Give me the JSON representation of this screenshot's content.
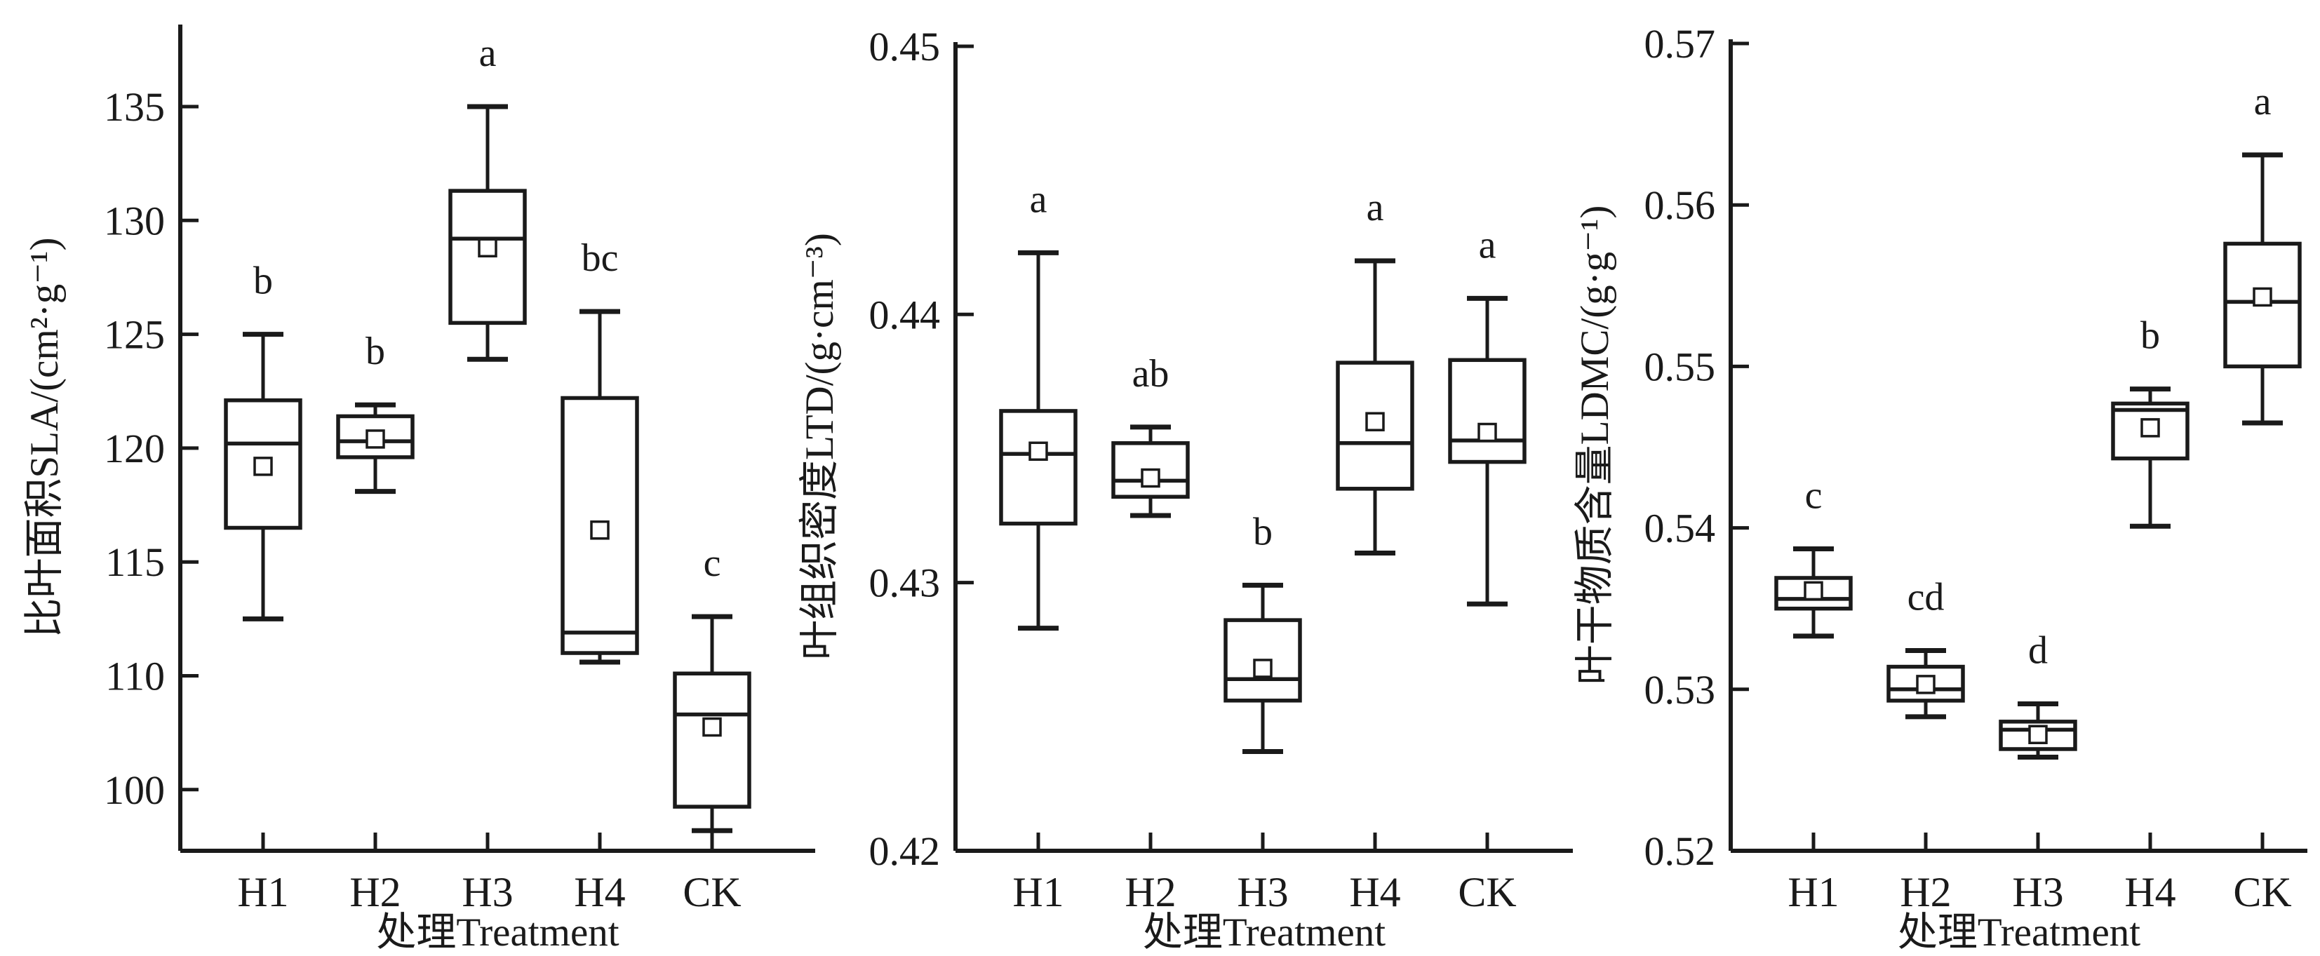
{
  "figure": {
    "background": "#ffffff",
    "ink_color": "#1a1a1a",
    "x_axis_title": "处理Treatment",
    "categories": [
      "H1",
      "H2",
      "H3",
      "H4",
      "CK"
    ]
  },
  "chart_data": [
    {
      "type": "box",
      "panel_id": "sla",
      "ylabel": "比叶面积SLA/(cm²·g⁻¹)",
      "xlabel": "处理Treatment",
      "categories": [
        "H1",
        "H2",
        "H3",
        "H4",
        "CK"
      ],
      "y_tick_labels": [
        "135",
        "130",
        "125",
        "120",
        "115",
        "110",
        "100"
      ],
      "y_tick_values": [
        135,
        130,
        125,
        120,
        115,
        110,
        100
      ],
      "axis_note": "bottom interval 110-100 compressed (equal tick spacing)",
      "series": [
        {
          "category": "H1",
          "letter": "b",
          "whisker_high": 125.0,
          "q3": 122.1,
          "median": 120.2,
          "mean": 119.2,
          "q1": 116.5,
          "whisker_low": 112.5
        },
        {
          "category": "H2",
          "letter": "b",
          "whisker_high": 121.9,
          "q3": 121.4,
          "median": 120.3,
          "mean": 120.4,
          "q1": 119.6,
          "whisker_low": 118.1
        },
        {
          "category": "H3",
          "letter": "a",
          "whisker_high": 135.0,
          "q3": 131.3,
          "median": 129.2,
          "mean": 128.8,
          "q1": 125.5,
          "whisker_low": 123.9
        },
        {
          "category": "H4",
          "letter": "bc",
          "whisker_high": 126.0,
          "q3": 122.2,
          "median": 111.9,
          "mean": 116.4,
          "q1": 111.0,
          "whisker_low": 110.6
        },
        {
          "category": "CK",
          "letter": "c",
          "whisker_high": 112.6,
          "q3": 110.1,
          "median": 106.6,
          "mean": 105.5,
          "q1": 98.5,
          "whisker_low": 96.4
        }
      ]
    },
    {
      "type": "box",
      "panel_id": "ltd",
      "ylabel": "叶组织密度LTD/(g·cm⁻³)",
      "xlabel": "处理Treatment",
      "categories": [
        "H1",
        "H2",
        "H3",
        "H4",
        "CK"
      ],
      "y_tick_labels": [
        "0.45",
        "0.44",
        "0.43",
        "0.42"
      ],
      "y_tick_values": [
        0.45,
        0.44,
        0.43,
        0.42
      ],
      "series": [
        {
          "category": "H1",
          "letter": "a",
          "whisker_high": 0.4423,
          "q3": 0.4364,
          "median": 0.4348,
          "mean": 0.4349,
          "q1": 0.4322,
          "whisker_low": 0.4283
        },
        {
          "category": "H2",
          "letter": "ab",
          "whisker_high": 0.4358,
          "q3": 0.4352,
          "median": 0.4338,
          "mean": 0.4339,
          "q1": 0.4332,
          "whisker_low": 0.4325
        },
        {
          "category": "H3",
          "letter": "b",
          "whisker_high": 0.4299,
          "q3": 0.4286,
          "median": 0.4264,
          "mean": 0.4268,
          "q1": 0.4256,
          "whisker_low": 0.4237
        },
        {
          "category": "H4",
          "letter": "a",
          "whisker_high": 0.442,
          "q3": 0.4382,
          "median": 0.4352,
          "mean": 0.436,
          "q1": 0.4335,
          "whisker_low": 0.4311
        },
        {
          "category": "CK",
          "letter": "a",
          "whisker_high": 0.4406,
          "q3": 0.4383,
          "median": 0.4353,
          "mean": 0.4356,
          "q1": 0.4345,
          "whisker_low": 0.4292
        }
      ]
    },
    {
      "type": "box",
      "panel_id": "ldmc",
      "ylabel": "叶干物质含量LDMC/(g·g⁻¹)",
      "xlabel": "处理Treatment",
      "categories": [
        "H1",
        "H2",
        "H3",
        "H4",
        "CK"
      ],
      "y_tick_labels": [
        "0.57",
        "0.56",
        "0.55",
        "0.54",
        "0.53",
        "0.52"
      ],
      "y_tick_values": [
        0.57,
        0.56,
        0.55,
        0.54,
        0.53,
        0.52
      ],
      "series": [
        {
          "category": "H1",
          "letter": "c",
          "whisker_high": 0.5387,
          "q3": 0.5369,
          "median": 0.5356,
          "mean": 0.5361,
          "q1": 0.535,
          "whisker_low": 0.5333
        },
        {
          "category": "H2",
          "letter": "cd",
          "whisker_high": 0.5324,
          "q3": 0.5314,
          "median": 0.53,
          "mean": 0.5303,
          "q1": 0.5293,
          "whisker_low": 0.5283
        },
        {
          "category": "H3",
          "letter": "d",
          "whisker_high": 0.5291,
          "q3": 0.528,
          "median": 0.5275,
          "mean": 0.5272,
          "q1": 0.5263,
          "whisker_low": 0.5258
        },
        {
          "category": "H4",
          "letter": "b",
          "whisker_high": 0.5486,
          "q3": 0.5477,
          "median": 0.5473,
          "mean": 0.5462,
          "q1": 0.5443,
          "whisker_low": 0.5401
        },
        {
          "category": "CK",
          "letter": "a",
          "whisker_high": 0.5631,
          "q3": 0.5576,
          "median": 0.554,
          "mean": 0.5543,
          "q1": 0.55,
          "whisker_low": 0.5465
        }
      ]
    }
  ]
}
